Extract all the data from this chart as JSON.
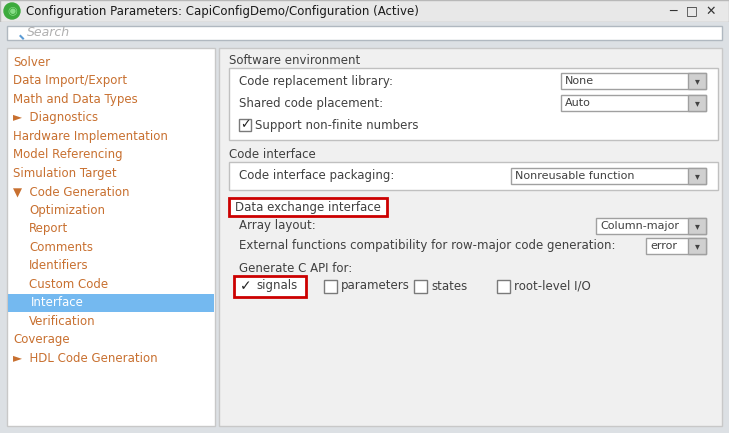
{
  "title": "Configuration Parameters: CapiConfigDemo/Configuration (Active)",
  "bg_color": "#f0f0f0",
  "panel_bg": "#f5f5f5",
  "left_panel_bg": "#ffffff",
  "selected_item_bg": "#74b9f0",
  "tree_items": [
    {
      "label": "Solver",
      "indent": 0,
      "selected": false
    },
    {
      "label": "Data Import/Export",
      "indent": 0,
      "selected": false
    },
    {
      "label": "Math and Data Types",
      "indent": 0,
      "selected": false
    },
    {
      "label": "►  Diagnostics",
      "indent": 0,
      "selected": false
    },
    {
      "label": "Hardware Implementation",
      "indent": 0,
      "selected": false
    },
    {
      "label": "Model Referencing",
      "indent": 0,
      "selected": false
    },
    {
      "label": "Simulation Target",
      "indent": 0,
      "selected": false
    },
    {
      "label": "▼  Code Generation",
      "indent": 0,
      "selected": false
    },
    {
      "label": "Optimization",
      "indent": 1,
      "selected": false
    },
    {
      "label": "Report",
      "indent": 1,
      "selected": false
    },
    {
      "label": "Comments",
      "indent": 1,
      "selected": false
    },
    {
      "label": "Identifiers",
      "indent": 1,
      "selected": false
    },
    {
      "label": "Custom Code",
      "indent": 1,
      "selected": false
    },
    {
      "label": "Interface",
      "indent": 1,
      "selected": true
    },
    {
      "label": "Verification",
      "indent": 1,
      "selected": false
    },
    {
      "label": "Coverage",
      "indent": 0,
      "selected": false
    },
    {
      "label": "►  HDL Code Generation",
      "indent": 0,
      "selected": false
    }
  ],
  "text_color": "#404040",
  "link_color": "#c87030",
  "highlight_red": "#cc0000",
  "titlebar_bg": "#e8e8e8",
  "search_bg": "#ffffff",
  "dropdown_bg": "#ffffff",
  "dropdown_arrow_bg": "#d0d0d0",
  "section_box_bg": "#ffffff",
  "right_bg": "#f0f0f0"
}
